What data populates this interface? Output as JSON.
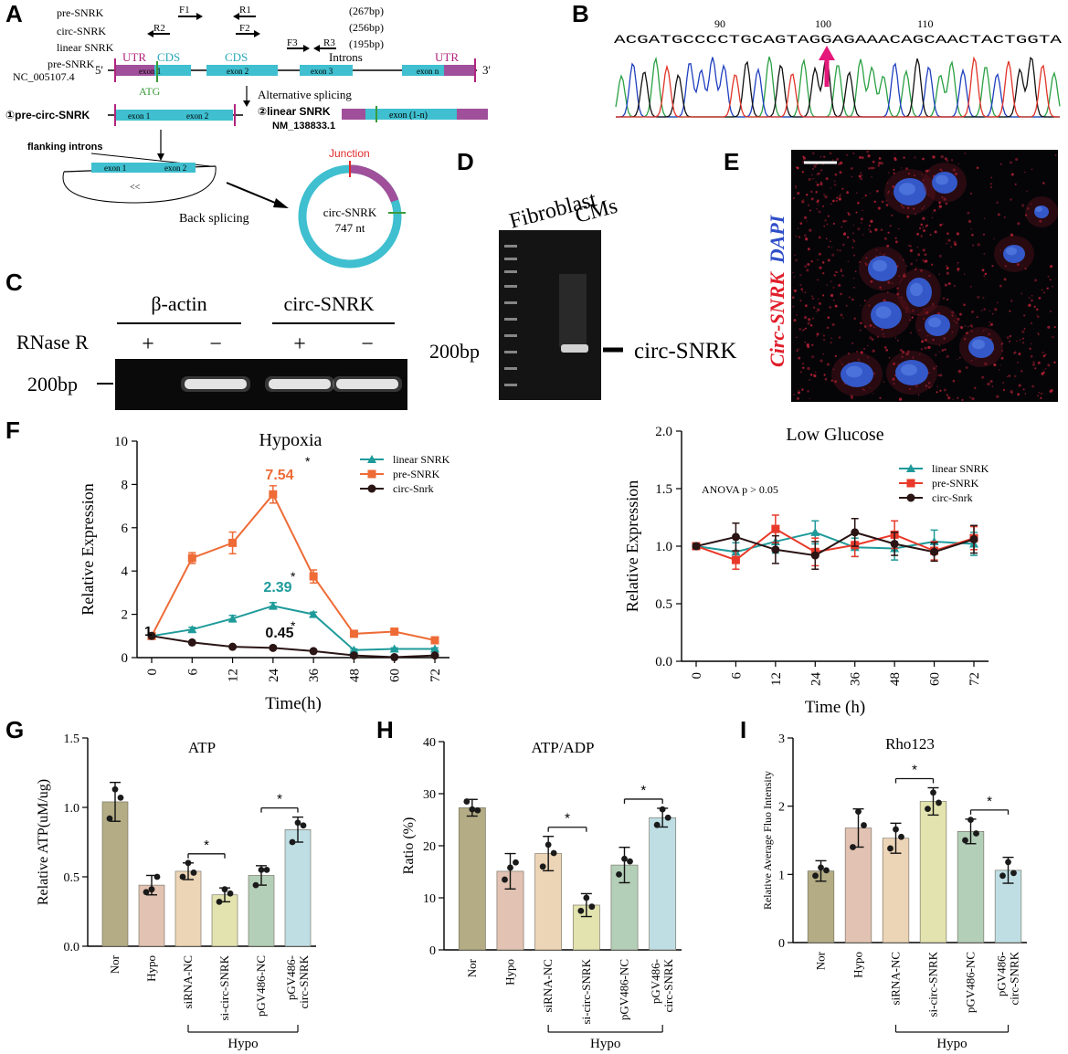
{
  "panels": {
    "A": {
      "label": "A",
      "primers": {
        "row_labels": [
          "pre-SNRK",
          "circ-SNRK",
          "linear SNRK"
        ],
        "sizes": [
          "(267bp)",
          "(256bp)",
          "(195bp)"
        ],
        "names": [
          "F1",
          "R1",
          "R2",
          "F2",
          "F3",
          "R3"
        ]
      },
      "gene_label": "pre-SNRK",
      "gene_accession": "NC_005107.4",
      "prime5": "5'",
      "prime3": "3'",
      "utr_left": "UTR",
      "utr_right": "UTR",
      "cds1": "CDS",
      "cds2": "CDS",
      "introns": "Introns",
      "exons": [
        "exon 1",
        "exon 2",
        "exon 3",
        "exon n"
      ],
      "atg": "ATG",
      "alt_splicing": "Alternative splicing",
      "pre_circ": "①pre-circ-SNRK",
      "pre_circ_exons": [
        "exon 1",
        "exon 2"
      ],
      "linear_label": "②linear SNRK",
      "linear_accession": "NM_138833.1",
      "linear_exon": "exon (1-n)",
      "flanking": "flanking introns",
      "flank_exons": [
        "exon 1",
        "exon 2"
      ],
      "back_splicing": "Back splicing",
      "junction": "Junction",
      "circ_name": "circ-SNRK",
      "circ_len": "747 nt"
    },
    "B": {
      "label": "B",
      "sequence": "ACGATGCCCCTGCAGTAGGAGAAACAGCAACTACTGGTA",
      "positions": [
        "90",
        "100",
        "110"
      ]
    },
    "C": {
      "label": "C",
      "groups": [
        "β-actin",
        "circ-SNRK"
      ],
      "treatment": "RNase R",
      "signs": [
        "+",
        "−",
        "+",
        "−"
      ],
      "marker": "200bp",
      "band_present": [
        false,
        true,
        true,
        true
      ]
    },
    "D": {
      "label": "D",
      "lanes": [
        "Fibroblast",
        "CMs"
      ],
      "marker": "200bp",
      "band": "circ-SNRK"
    },
    "E": {
      "label": "E",
      "stain_blue": "DAPI",
      "stain_red": "Circ-SNRK"
    },
    "F": {
      "label": "F",
      "annot_pre": "7.54",
      "annot_lin": "2.39",
      "annot_circ": "0.45",
      "annot_one": "1",
      "star": "*",
      "anova": "ANOVA p > 0.05"
    },
    "G": {
      "label": "G"
    },
    "H": {
      "label": "H"
    },
    "I": {
      "label": "I"
    }
  },
  "colors": {
    "pre": "#ee6b36",
    "linear": "#1f9a9a",
    "circ": "#2a1414",
    "lowglu_pre": "#e8392a",
    "teal_exon": "#3fbfcf",
    "utr_purple": "#a0509a",
    "bar_colors": [
      "#b3ac84",
      "#e2c2b2",
      "#ecd4b6",
      "#e2e3ae",
      "#b4cfb8",
      "#bedee4"
    ]
  },
  "chart_data": [
    {
      "id": "hypoxia",
      "type": "line",
      "title": "Hypoxia",
      "xlabel": "Time(h)",
      "ylabel": "Relative Expression",
      "x": [
        0,
        6,
        12,
        24,
        36,
        48,
        60,
        72
      ],
      "ylim": [
        0,
        10
      ],
      "yticks": [
        0,
        2,
        4,
        6,
        8,
        10
      ],
      "legend": "top-right",
      "series": [
        {
          "name": "linear SNRK",
          "marker": "triangle",
          "values": [
            1.0,
            1.3,
            1.8,
            2.39,
            2.0,
            0.35,
            0.4,
            0.4
          ],
          "err": [
            0.1,
            0.1,
            0.15,
            0.15,
            0.1,
            0.05,
            0.05,
            0.05
          ]
        },
        {
          "name": "pre-SNRK",
          "marker": "square",
          "values": [
            1.0,
            4.6,
            5.3,
            7.54,
            3.75,
            1.1,
            1.2,
            0.8
          ],
          "err": [
            0.1,
            0.25,
            0.5,
            0.4,
            0.3,
            0.1,
            0.1,
            0.1
          ]
        },
        {
          "name": "circ-Snrk",
          "marker": "circle",
          "values": [
            1.0,
            0.7,
            0.5,
            0.45,
            0.3,
            0.1,
            0.02,
            0.1
          ],
          "err": [
            0.05,
            0.05,
            0.05,
            0.05,
            0.05,
            0.03,
            0.05,
            0.05
          ]
        }
      ]
    },
    {
      "id": "lowglucose",
      "type": "line",
      "title": "Low Glucose",
      "xlabel": "Time (h)",
      "ylabel": "Relative Expression",
      "x": [
        0,
        6,
        12,
        24,
        36,
        48,
        60,
        72
      ],
      "ylim": [
        0,
        2.0
      ],
      "yticks": [
        0.0,
        0.5,
        1.0,
        1.5,
        2.0
      ],
      "legend": "top-right",
      "series": [
        {
          "name": "linear SNRK",
          "marker": "triangle",
          "values": [
            1.0,
            0.95,
            1.04,
            1.12,
            0.99,
            0.98,
            1.04,
            1.02
          ],
          "err": [
            0.02,
            0.08,
            0.1,
            0.1,
            0.08,
            0.1,
            0.1,
            0.1
          ]
        },
        {
          "name": "pre-SNRK",
          "marker": "square",
          "values": [
            1.0,
            0.88,
            1.15,
            0.95,
            1.01,
            1.1,
            0.96,
            1.07
          ],
          "err": [
            0.02,
            0.08,
            0.12,
            0.12,
            0.1,
            0.12,
            0.08,
            0.1
          ]
        },
        {
          "name": "circ-Snrk",
          "marker": "circle",
          "values": [
            1.0,
            1.08,
            0.97,
            0.92,
            1.12,
            1.02,
            0.95,
            1.06
          ],
          "err": [
            0.02,
            0.12,
            0.12,
            0.12,
            0.12,
            0.1,
            0.08,
            0.12
          ]
        }
      ]
    },
    {
      "id": "atp",
      "type": "bar",
      "title": "ATP",
      "ylabel": "Relative ATP(uM/ug)",
      "categories": [
        "Nor",
        "Hypo",
        "siRNA-NC",
        "si-circ-SNRK",
        "pGV486-NC",
        "pGV486-\ncirc-SNRK"
      ],
      "values": [
        1.04,
        0.44,
        0.54,
        0.37,
        0.51,
        0.84
      ],
      "err": [
        0.14,
        0.07,
        0.06,
        0.05,
        0.07,
        0.09
      ],
      "points": [
        [
          0.92,
          1.13,
          1.07
        ],
        [
          0.39,
          0.41,
          0.5
        ],
        [
          0.5,
          0.6,
          0.53
        ],
        [
          0.32,
          0.41,
          0.38
        ],
        [
          0.44,
          0.55,
          0.55
        ],
        [
          0.75,
          0.89,
          0.87
        ]
      ],
      "ylim": [
        0,
        1.5
      ],
      "yticks": [
        0.0,
        0.5,
        1.0,
        1.5
      ],
      "significance": [
        [
          2,
          3
        ],
        [
          4,
          5
        ]
      ],
      "sig_mark": "*",
      "group_label": "Hypo",
      "group_range": [
        2,
        5
      ]
    },
    {
      "id": "atpadp",
      "type": "bar",
      "title": "ATP/ADP",
      "ylabel": "Ratio (%)",
      "categories": [
        "Nor",
        "Hypo",
        "siRNA-NC",
        "si-circ-SNRK",
        "pGV486-NC",
        "pGV486-\ncirc-SNRK"
      ],
      "values": [
        27.3,
        15.1,
        18.5,
        8.6,
        16.3,
        25.4
      ],
      "err": [
        1.6,
        3.4,
        3.3,
        2.2,
        3.4,
        1.8
      ],
      "points": [
        [
          28.5,
          27.0,
          26.8
        ],
        [
          13.5,
          15.8,
          16.8
        ],
        [
          16.0,
          20.2,
          18.6
        ],
        [
          7.5,
          10.0,
          8.3
        ],
        [
          14.5,
          17.5,
          17.0
        ],
        [
          24.0,
          27.0,
          25.4
        ]
      ],
      "ylim": [
        0,
        40
      ],
      "yticks": [
        0,
        10,
        20,
        30,
        40
      ],
      "significance": [
        [
          2,
          3
        ],
        [
          4,
          5
        ]
      ],
      "sig_mark": "*",
      "group_label": "Hypo",
      "group_range": [
        2,
        5
      ]
    },
    {
      "id": "rho123",
      "type": "bar",
      "title": "Rho123",
      "ylabel": "Relative Average Fluo Intensity",
      "categories": [
        "Nor",
        "Hypo",
        "siRNA-NC",
        "si-circ-SNRK",
        "pGV486-NC",
        "pGV486-\ncirc-SNRK"
      ],
      "values": [
        1.05,
        1.68,
        1.53,
        2.07,
        1.63,
        1.06
      ],
      "err": [
        0.15,
        0.28,
        0.22,
        0.2,
        0.18,
        0.19
      ],
      "points": [
        [
          0.98,
          1.1,
          1.06
        ],
        [
          1.4,
          1.92,
          1.72
        ],
        [
          1.38,
          1.66,
          1.55
        ],
        [
          1.96,
          2.2,
          2.05
        ],
        [
          1.5,
          1.8,
          1.6
        ],
        [
          0.98,
          1.18,
          1.02
        ]
      ],
      "ylim": [
        0,
        3
      ],
      "yticks": [
        0,
        1,
        2,
        3
      ],
      "significance": [
        [
          2,
          3
        ],
        [
          4,
          5
        ]
      ],
      "sig_mark": "*",
      "group_label": "Hypo",
      "group_range": [
        2,
        5
      ]
    }
  ]
}
